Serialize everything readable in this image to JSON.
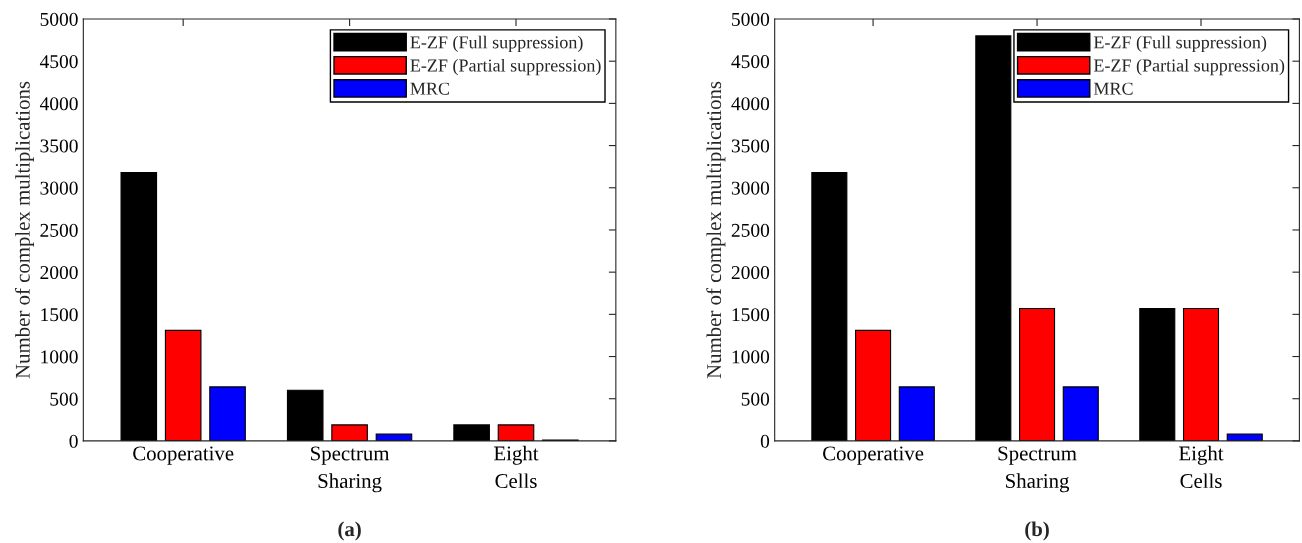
{
  "chart_data": [
    {
      "type": "bar",
      "title": "(a)",
      "ylabel": "Number of complex multiplications",
      "categories": [
        "Cooperative",
        "Spectrum\nSharing",
        "Eight\nCells"
      ],
      "ylim": [
        0,
        5000
      ],
      "yticks": [
        0,
        500,
        1000,
        1500,
        2000,
        2500,
        3000,
        3500,
        4000,
        4500,
        5000
      ],
      "legend": "top right",
      "grid": false,
      "series": [
        {
          "name": "E-ZF (Full suppression)",
          "color": "#000000",
          "values": [
            3180,
            600,
            190
          ]
        },
        {
          "name": "E-ZF (Partial suppression)",
          "color": "#ff0000",
          "values": [
            1310,
            190,
            190
          ]
        },
        {
          "name": "MRC",
          "color": "#0000ff",
          "values": [
            640,
            80,
            10
          ]
        }
      ]
    },
    {
      "type": "bar",
      "title": "(b)",
      "ylabel": "Number of complex multiplications",
      "categories": [
        "Cooperative",
        "Spectrum\nSharing",
        "Eight\nCells"
      ],
      "ylim": [
        0,
        5000
      ],
      "yticks": [
        0,
        500,
        1000,
        1500,
        2000,
        2500,
        3000,
        3500,
        4000,
        4500,
        5000
      ],
      "legend": "top right",
      "grid": false,
      "series": [
        {
          "name": "E-ZF (Full suppression)",
          "color": "#000000",
          "values": [
            3180,
            4800,
            1570
          ]
        },
        {
          "name": "E-ZF (Partial suppression)",
          "color": "#ff0000",
          "values": [
            1310,
            1570,
            1570
          ]
        },
        {
          "name": "MRC",
          "color": "#0000ff",
          "values": [
            640,
            640,
            80
          ]
        }
      ]
    }
  ]
}
